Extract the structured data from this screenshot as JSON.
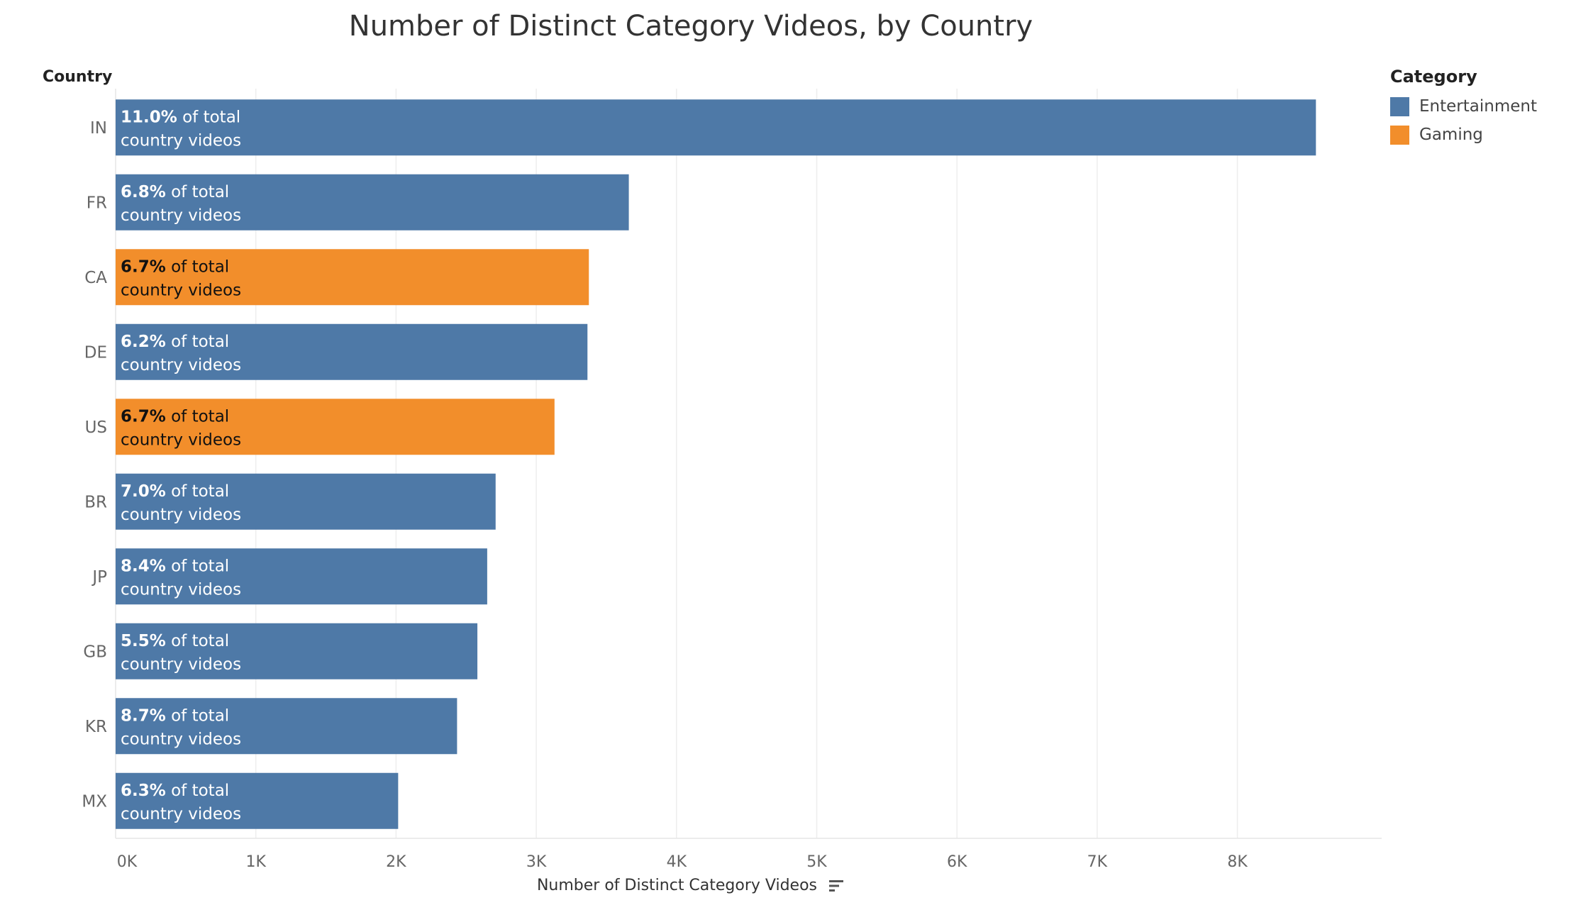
{
  "chart_data": {
    "type": "bar",
    "orientation": "horizontal",
    "title": "Number of Distinct Category Videos, by Country",
    "ylabel": "Country",
    "xlabel": "Number of Distinct Category Videos",
    "xlim": [
      0,
      9000
    ],
    "x_ticks": [
      0,
      1000,
      2000,
      3000,
      4000,
      5000,
      6000,
      7000,
      8000
    ],
    "x_tick_labels": [
      "0K",
      "1K",
      "2K",
      "3K",
      "4K",
      "5K",
      "6K",
      "7K",
      "8K"
    ],
    "grid": true,
    "legend_position": "top-right",
    "legend_title": "Category",
    "legend": [
      {
        "name": "Entertainment",
        "color": "#4e79a7"
      },
      {
        "name": "Gaming",
        "color": "#f28e2b"
      }
    ],
    "categories": [
      "IN",
      "FR",
      "CA",
      "DE",
      "US",
      "BR",
      "JP",
      "GB",
      "KR",
      "MX"
    ],
    "values": [
      8560,
      3660,
      3375,
      3365,
      3130,
      2710,
      2650,
      2580,
      2435,
      2015
    ],
    "category_names": [
      "Entertainment",
      "Entertainment",
      "Gaming",
      "Entertainment",
      "Gaming",
      "Entertainment",
      "Entertainment",
      "Entertainment",
      "Entertainment",
      "Entertainment"
    ],
    "label_pct": [
      "11.0%",
      "6.8%",
      "6.7%",
      "6.2%",
      "6.7%",
      "7.0%",
      "8.4%",
      "5.5%",
      "8.7%",
      "6.3%"
    ],
    "label_suffix_line1": " of total",
    "label_line2": "country videos"
  }
}
